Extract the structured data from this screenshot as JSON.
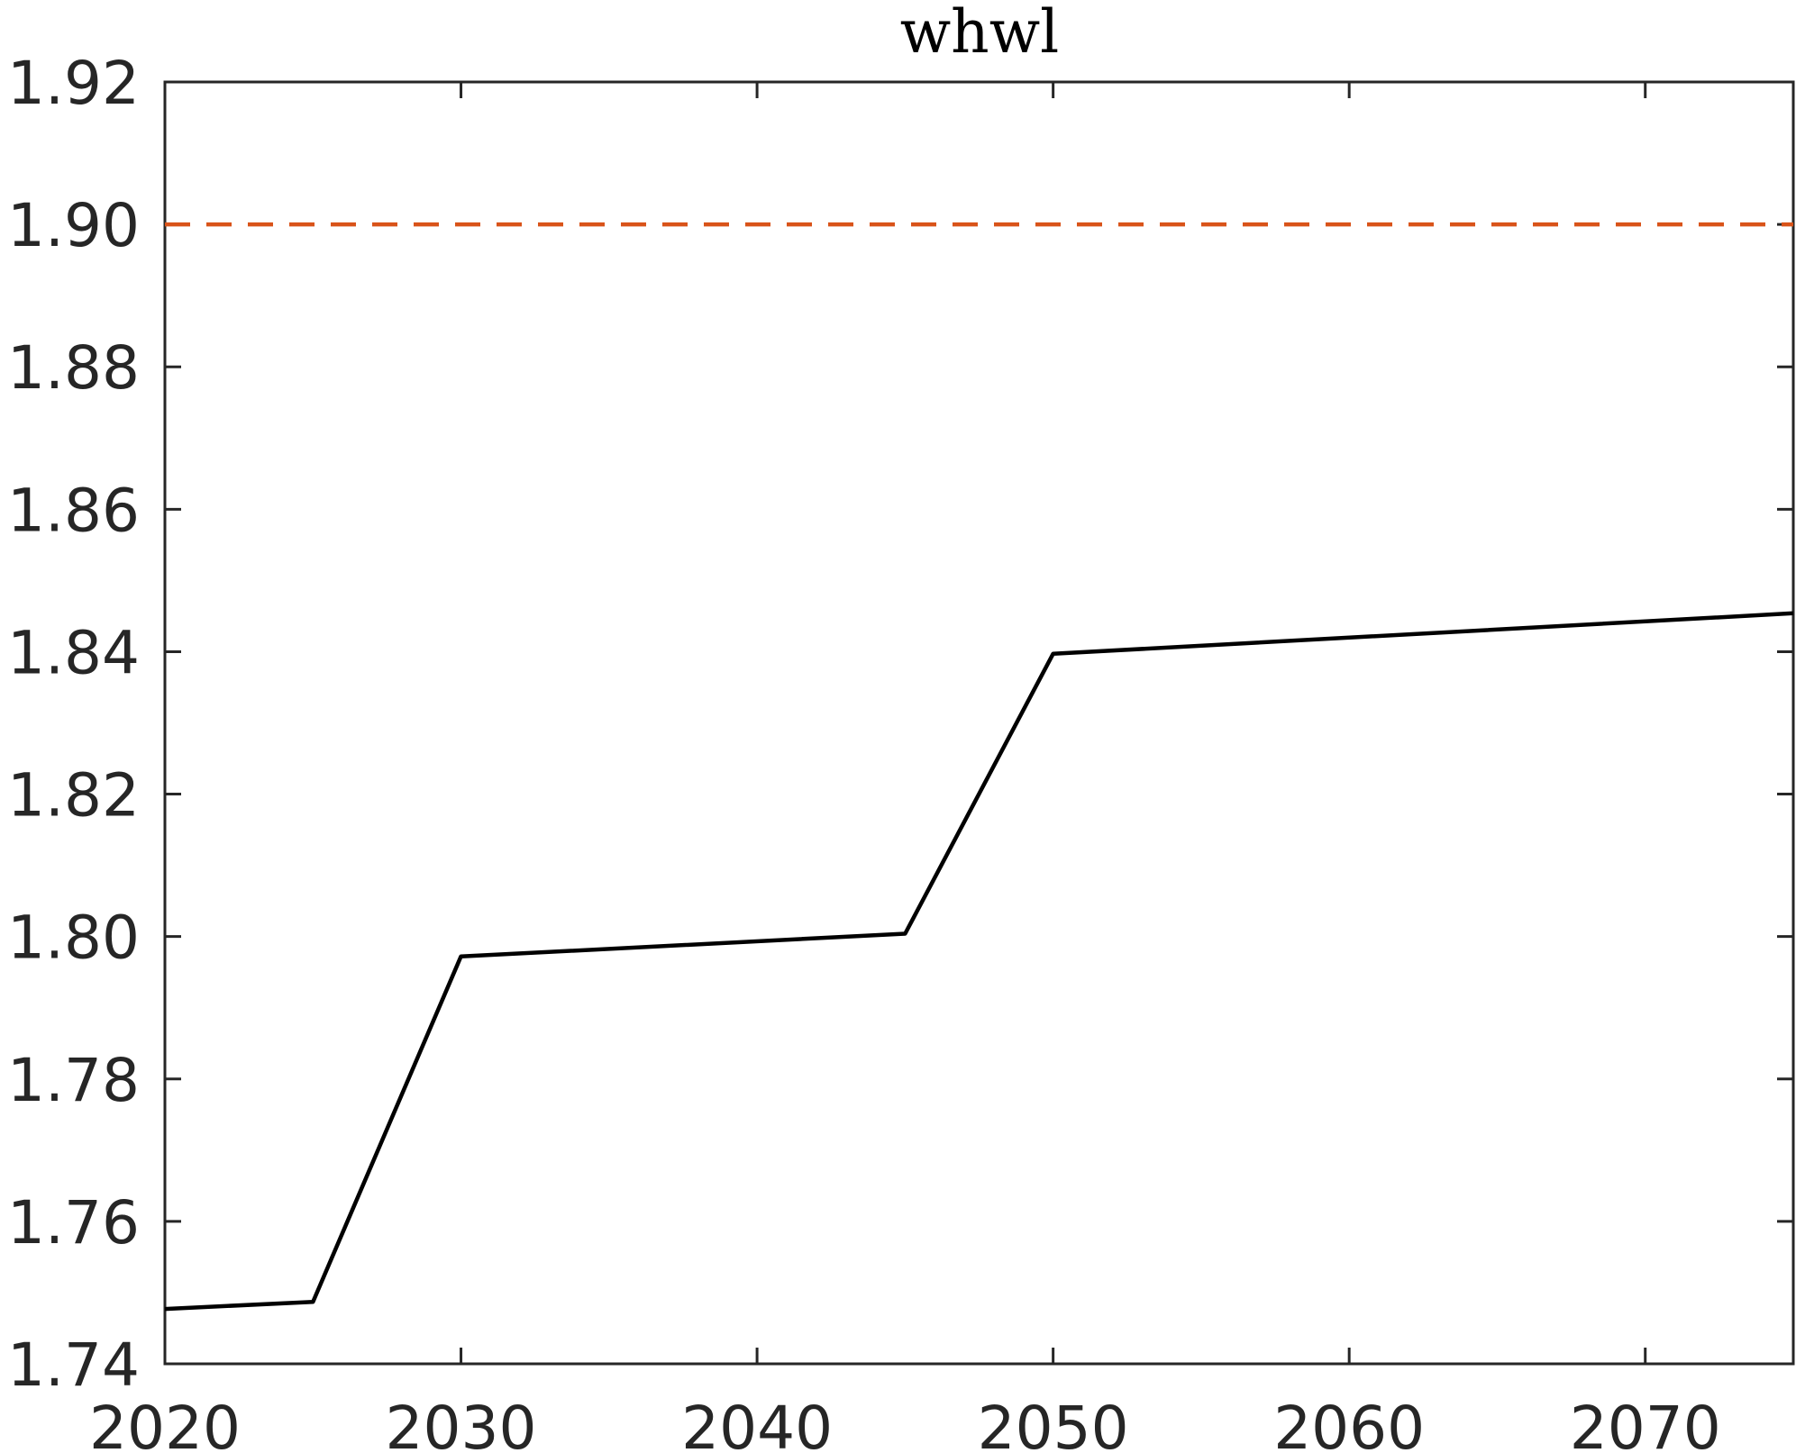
{
  "chart_data": {
    "type": "line",
    "title": "whwl",
    "xlabel": "",
    "ylabel": "",
    "xlim": [
      2020,
      2075
    ],
    "ylim": [
      1.74,
      1.92
    ],
    "x_ticks": [
      2020,
      2030,
      2040,
      2050,
      2060,
      2070
    ],
    "x_tick_labels": [
      "2020",
      "2030",
      "2040",
      "2050",
      "2060",
      "2070"
    ],
    "y_ticks": [
      1.74,
      1.76,
      1.78,
      1.8,
      1.82,
      1.84,
      1.86,
      1.88,
      1.9,
      1.92
    ],
    "y_tick_labels": [
      "1.74",
      "1.76",
      "1.78",
      "1.80",
      "1.82",
      "1.84",
      "1.86",
      "1.88",
      "1.90",
      "1.92"
    ],
    "grid": false,
    "series": [
      {
        "color": "#000000",
        "style": "solid",
        "x": [
          2020,
          2025,
          2030,
          2045,
          2050,
          2075
        ],
        "y": [
          1.7477,
          1.7487,
          1.7972,
          1.8004,
          1.8397,
          1.8454
        ]
      },
      {
        "color": "#D95319",
        "style": "dashed",
        "x": [
          2020,
          2075
        ],
        "y": [
          1.9,
          1.9
        ]
      }
    ]
  }
}
